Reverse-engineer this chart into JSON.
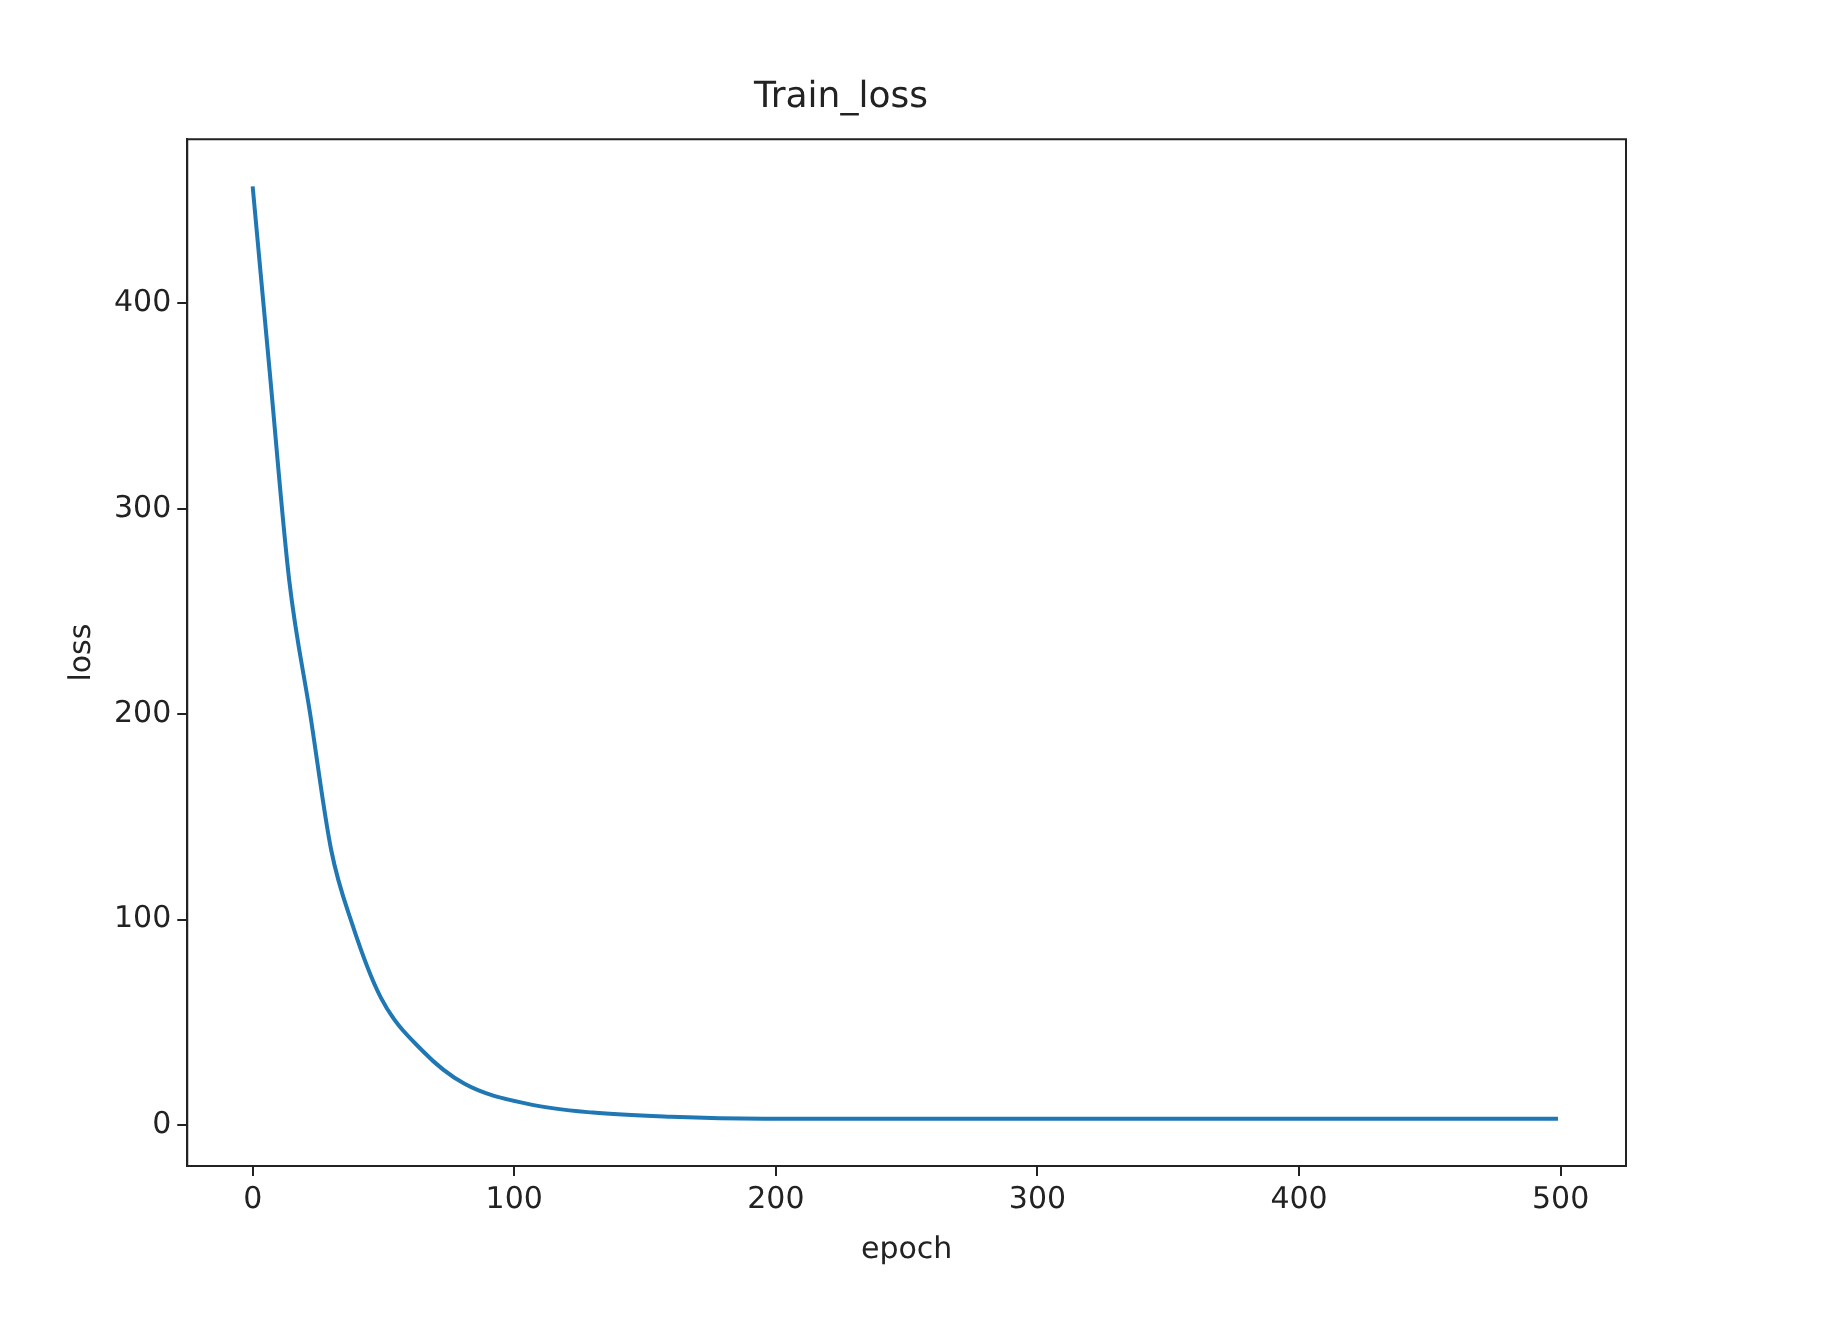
{
  "chart_data": {
    "type": "line",
    "title": "Train_loss",
    "xlabel": "epoch",
    "ylabel": "loss",
    "x": [
      0,
      6.5,
      14,
      22,
      30,
      38,
      49,
      65,
      81,
      106,
      130,
      160,
      200,
      300,
      400,
      499
    ],
    "series": [
      {
        "color": "#1f77b4",
        "values": [
          457,
          367,
          265,
          200,
          134,
          98,
          62,
          36,
          20,
          10,
          6,
          4,
          3,
          3,
          3,
          3
        ]
      }
    ],
    "xlim": [
      -25,
      525
    ],
    "ylim": [
      -20,
      480
    ],
    "xticks": [
      0,
      100,
      200,
      300,
      400,
      500
    ],
    "yticks": [
      0,
      100,
      200,
      300,
      400
    ],
    "grid": false,
    "legend": false,
    "marker": "none",
    "line_style": "solid"
  }
}
